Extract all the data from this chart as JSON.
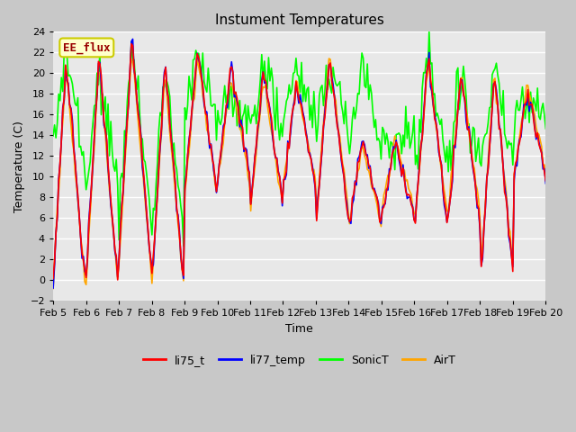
{
  "title": "Instument Temperatures",
  "xlabel": "Time",
  "ylabel": "Temperature (C)",
  "ylim": [
    -2,
    24
  ],
  "xlim": [
    0,
    15
  ],
  "xtick_labels": [
    "Feb 5",
    "Feb 6",
    "Feb 7",
    "Feb 8",
    "Feb 9",
    "Feb 10",
    "Feb 11",
    "Feb 12",
    "Feb 13",
    "Feb 14",
    "Feb 15",
    "Feb 16",
    "Feb 17",
    "Feb 18",
    "Feb 19",
    "Feb 20"
  ],
  "annotation_text": "EE_flux",
  "annotation_color": "#990000",
  "annotation_bg": "#ffffcc",
  "annotation_border": "#cccc00",
  "fig_bg": "#c8c8c8",
  "plot_bg": "#e8e8e8",
  "grid_color": "white",
  "linewidth": 1.2
}
